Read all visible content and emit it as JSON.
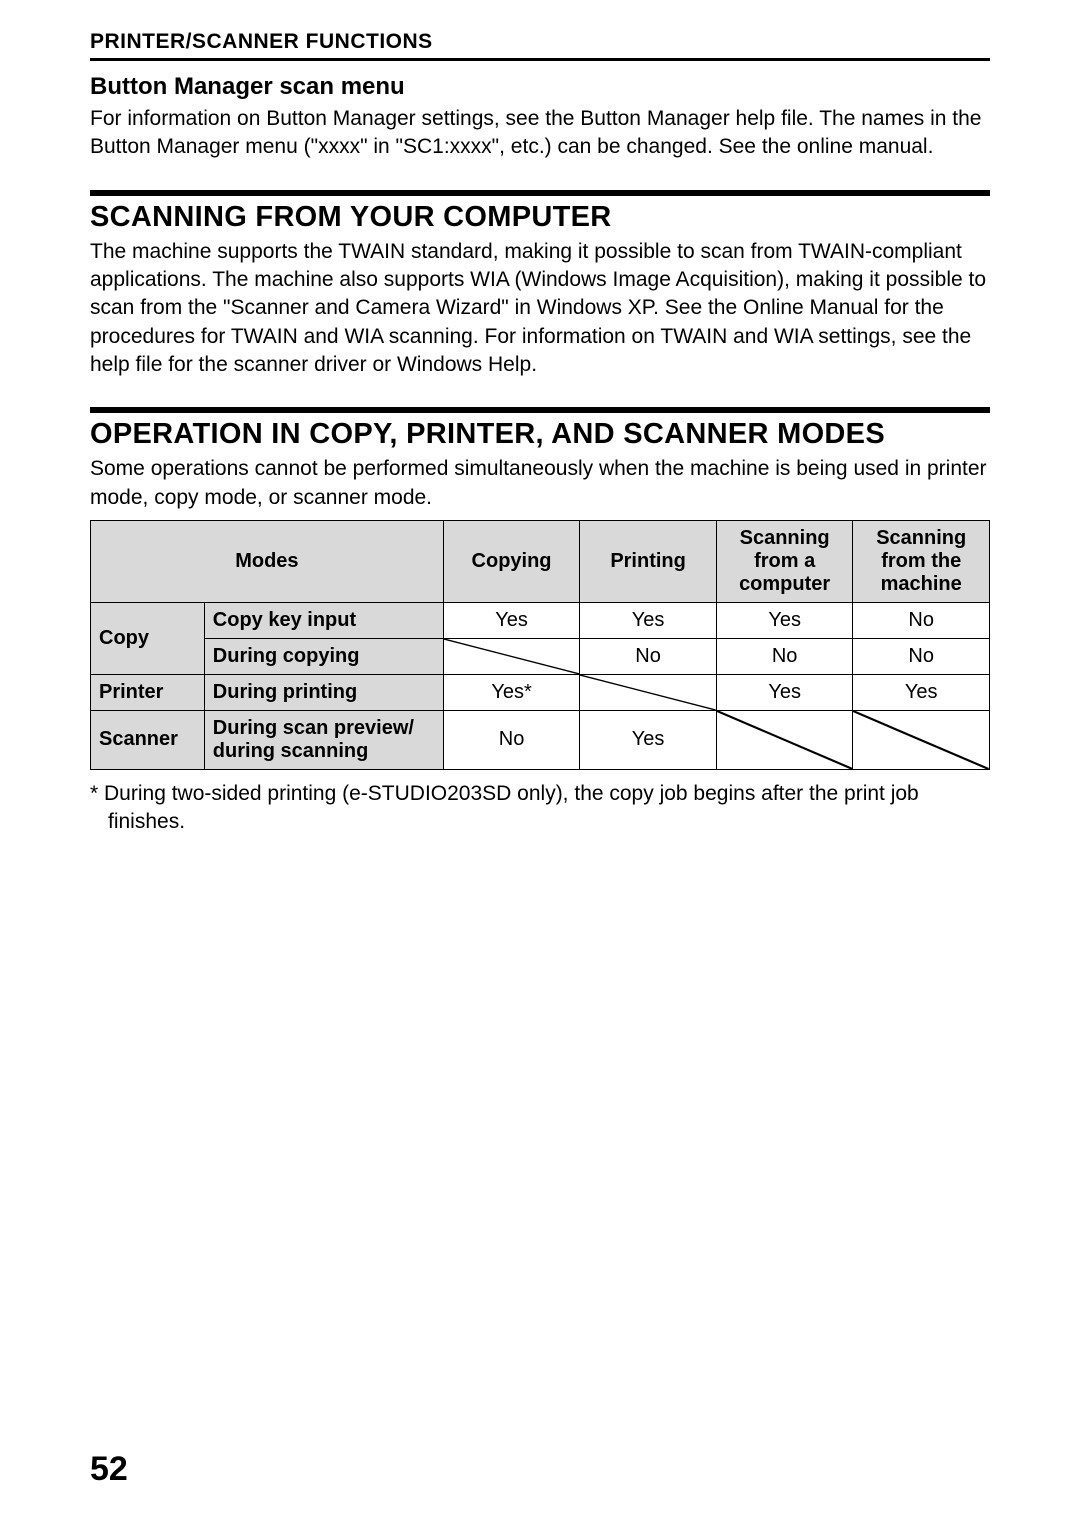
{
  "chapter_title": "PRINTER/SCANNER FUNCTIONS",
  "subsection": {
    "title": "Button Manager scan menu",
    "body": "For information on Button Manager settings, see the Button Manager help file. The names in the Button Manager menu (\"xxxx\" in \"SC1:xxxx\", etc.) can be changed. See the online manual."
  },
  "section1": {
    "title": "SCANNING FROM YOUR COMPUTER",
    "body": "The machine supports the TWAIN standard, making it possible to scan from TWAIN-compliant applications. The machine also supports WIA (Windows Image Acquisition), making it possible to scan from the \"Scanner and Camera Wizard\" in Windows XP. See the Online Manual for the procedures for TWAIN and WIA scanning. For information on TWAIN and WIA settings, see the help file for the scanner driver or Windows Help."
  },
  "section2": {
    "title": "OPERATION IN COPY, PRINTER, AND SCANNER MODES",
    "body": "Some operations cannot be performed simultaneously when the machine is being used in printer mode, copy mode, or scanner mode."
  },
  "table": {
    "headers": {
      "modes": "Modes",
      "copying": "Copying",
      "printing": "Printing",
      "scan_computer": "Scanning from a computer",
      "scan_machine": "Scanning from the machine"
    },
    "rows": [
      {
        "mode": "Copy",
        "states": [
          {
            "label": "Copy key input",
            "copying": "Yes",
            "printing": "Yes",
            "scan_computer": "Yes",
            "scan_machine": "No"
          },
          {
            "label": "During copying",
            "copying": "DIAG",
            "printing": "No",
            "scan_computer": "No",
            "scan_machine": "No"
          }
        ]
      },
      {
        "mode": "Printer",
        "states": [
          {
            "label": "During printing",
            "copying": "Yes*",
            "printing": "DIAG",
            "scan_computer": "Yes",
            "scan_machine": "Yes"
          }
        ]
      },
      {
        "mode": "Scanner",
        "states": [
          {
            "label": "During scan preview/ during scanning",
            "copying": "No",
            "printing": "Yes",
            "scan_computer": "DIAG",
            "scan_machine": "DIAG"
          }
        ]
      }
    ],
    "header_bg": "#d9d9d9",
    "border_color": "#000000"
  },
  "footnote": "*  During two-sided printing (e-STUDIO203SD only), the copy job begins after the print job finishes.",
  "page_number": "52"
}
